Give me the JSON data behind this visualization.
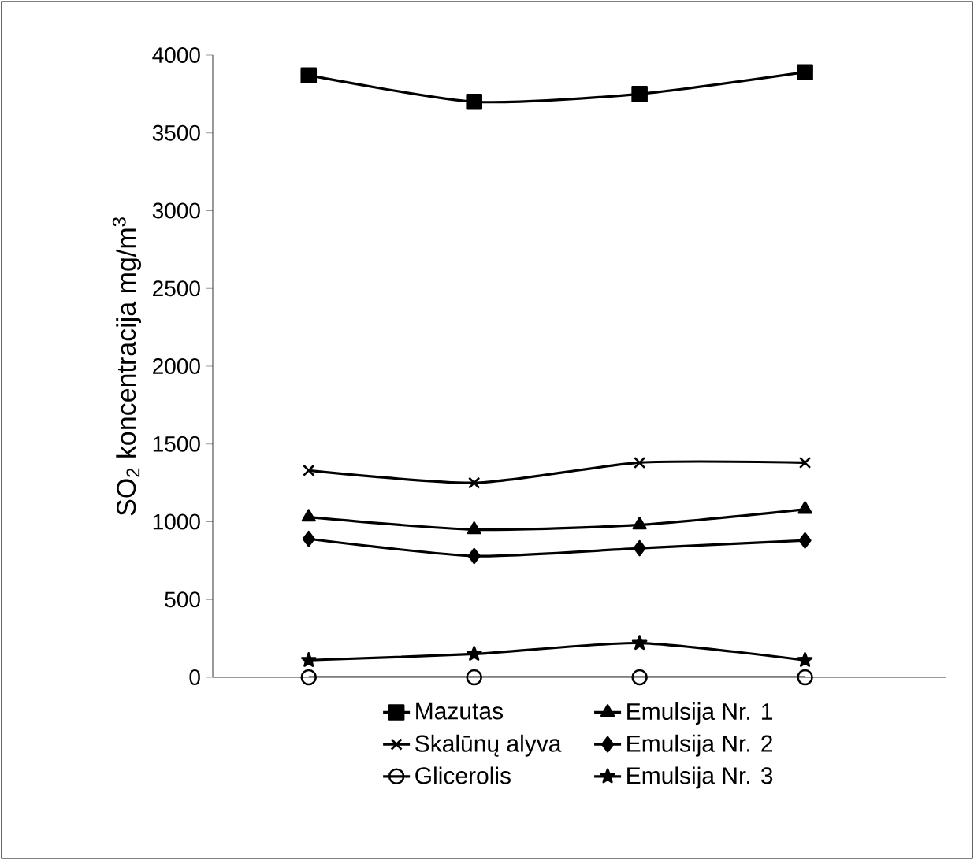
{
  "chart_data": {
    "type": "line",
    "ylabel": "SO$_{2}$ koncentracija mg/m$^{3}$",
    "categories": [
      null,
      null,
      null,
      null
    ],
    "ylim": [
      0,
      4000
    ],
    "yticks": [
      0,
      500,
      1000,
      1500,
      2000,
      2500,
      3000,
      3500,
      4000
    ],
    "grid": false,
    "legend": "bottom",
    "series": [
      {
        "name": "Mazutas",
        "color": "#000000",
        "marker": "square",
        "values": [
          3870,
          3700,
          3750,
          3890
        ]
      },
      {
        "name": "Emulsija Nr. 1",
        "color": "#000000",
        "marker": "triangle",
        "values": [
          1030,
          950,
          980,
          1080
        ]
      },
      {
        "name": "Skalūnų alyva",
        "color": "#000000",
        "marker": "cross",
        "values": [
          1330,
          1250,
          1380,
          1380
        ]
      },
      {
        "name": "Emulsija Nr. 2",
        "color": "#000000",
        "marker": "diamond",
        "values": [
          890,
          780,
          830,
          880
        ]
      },
      {
        "name": "Glicerolis",
        "color": "#000000",
        "marker": "circle",
        "values": [
          0,
          0,
          0,
          0
        ]
      },
      {
        "name": "Emulsija Nr. 3",
        "color": "#000000",
        "marker": "star",
        "values": [
          110,
          150,
          220,
          110
        ]
      }
    ]
  }
}
